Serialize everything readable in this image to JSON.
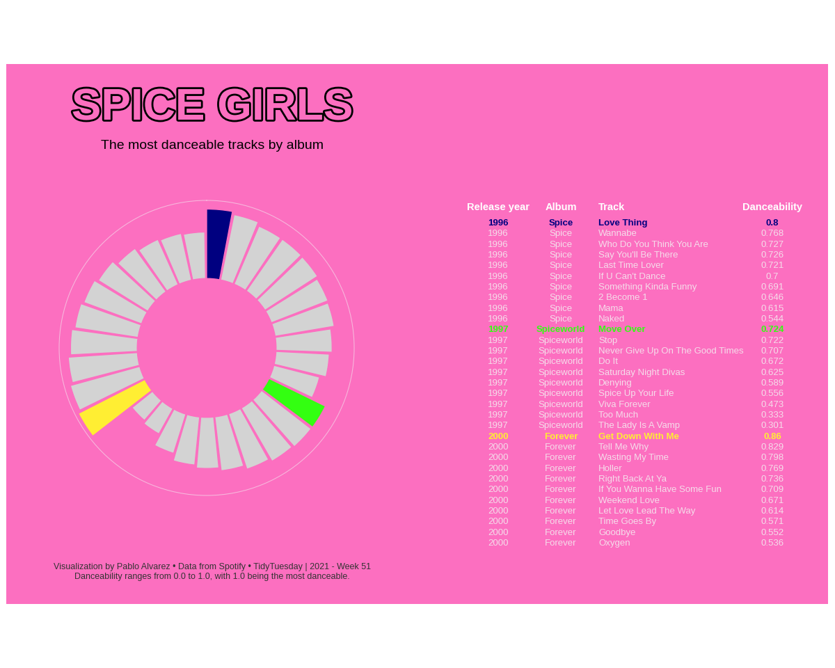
{
  "title": "SPICE GIRLS",
  "subtitle": "The most danceable tracks by album",
  "chart_data": {
    "type": "bar",
    "values": [
      0.8,
      0.768,
      0.727,
      0.726,
      0.721,
      0.7,
      0.691,
      0.646,
      0.615,
      0.544,
      0.724,
      0.722,
      0.707,
      0.672,
      0.625,
      0.589,
      0.556,
      0.473,
      0.333,
      0.301,
      0.86,
      0.829,
      0.798,
      0.769,
      0.736,
      0.709,
      0.671,
      0.614,
      0.571,
      0.552,
      0.536
    ],
    "colors": [
      "#000080",
      "#d3d3d3",
      "#d3d3d3",
      "#d3d3d3",
      "#d3d3d3",
      "#d3d3d3",
      "#d3d3d3",
      "#d3d3d3",
      "#d3d3d3",
      "#d3d3d3",
      "#33ff11",
      "#d3d3d3",
      "#d3d3d3",
      "#d3d3d3",
      "#d3d3d3",
      "#d3d3d3",
      "#d3d3d3",
      "#d3d3d3",
      "#d3d3d3",
      "#d3d3d3",
      "#ffee33",
      "#d3d3d3",
      "#d3d3d3",
      "#d3d3d3",
      "#d3d3d3",
      "#d3d3d3",
      "#d3d3d3",
      "#d3d3d3",
      "#d3d3d3",
      "#d3d3d3",
      "#d3d3d3"
    ],
    "ylim": [
      -0.8,
      0.9
    ],
    "tick_labels": false,
    "grid": false
  },
  "table": {
    "columns": [
      "Release year",
      "Album",
      "Track",
      "Danceability"
    ],
    "rows": [
      [
        1996,
        "Spice",
        "Love Thing",
        0.8
      ],
      [
        1996,
        "Spice",
        "Wannabe",
        0.768
      ],
      [
        1996,
        "Spice",
        "Who Do You Think You Are",
        0.727
      ],
      [
        1996,
        "Spice",
        "Say You'll Be There",
        0.726
      ],
      [
        1996,
        "Spice",
        "Last Time Lover",
        0.721
      ],
      [
        1996,
        "Spice",
        "If U Can't Dance",
        0.7
      ],
      [
        1996,
        "Spice",
        "Something Kinda Funny",
        0.691
      ],
      [
        1996,
        "Spice",
        "2 Become 1",
        0.646
      ],
      [
        1996,
        "Spice",
        "Mama",
        0.615
      ],
      [
        1996,
        "Spice",
        "Naked",
        0.544
      ],
      [
        1997,
        "Spiceworld",
        "Move Over",
        0.724
      ],
      [
        1997,
        "Spiceworld",
        "Stop",
        0.722
      ],
      [
        1997,
        "Spiceworld",
        "Never Give Up On The Good Times",
        0.707
      ],
      [
        1997,
        "Spiceworld",
        "Do It",
        0.672
      ],
      [
        1997,
        "Spiceworld",
        "Saturday Night Divas",
        0.625
      ],
      [
        1997,
        "Spiceworld",
        "Denying",
        0.589
      ],
      [
        1997,
        "Spiceworld",
        "Spice Up Your Life",
        0.556
      ],
      [
        1997,
        "Spiceworld",
        "Viva Forever",
        0.473
      ],
      [
        1997,
        "Spiceworld",
        "Too Much",
        0.333
      ],
      [
        1997,
        "Spiceworld",
        "The Lady Is A Vamp",
        0.301
      ],
      [
        2000,
        "Forever",
        "Get Down With Me",
        0.86
      ],
      [
        2000,
        "Forever",
        "Tell Me Why",
        0.829
      ],
      [
        2000,
        "Forever",
        "Wasting My Time",
        0.798
      ],
      [
        2000,
        "Forever",
        "Holler",
        0.769
      ],
      [
        2000,
        "Forever",
        "Right Back At Ya",
        0.736
      ],
      [
        2000,
        "Forever",
        "If You Wanna Have Some Fun",
        0.709
      ],
      [
        2000,
        "Forever",
        "Weekend Love",
        0.671
      ],
      [
        2000,
        "Forever",
        "Let Love Lead The Way",
        0.614
      ],
      [
        2000,
        "Forever",
        "Time Goes By",
        0.571
      ],
      [
        2000,
        "Forever",
        "Goodbye",
        0.552
      ],
      [
        2000,
        "Forever",
        "Oxygen",
        0.536
      ]
    ],
    "highlight": {
      "rows": [
        0,
        10,
        20
      ],
      "colors": [
        "#000080",
        "#33ff11",
        "#ffee33"
      ]
    }
  },
  "footer": [
    "Visualization by Pablo Alvarez • Data from Spotify • TidyTuesday | 2021 - Week 51",
    "Danceability ranges from 0.0 to 1.0, with 1.0 being the most danceable."
  ]
}
